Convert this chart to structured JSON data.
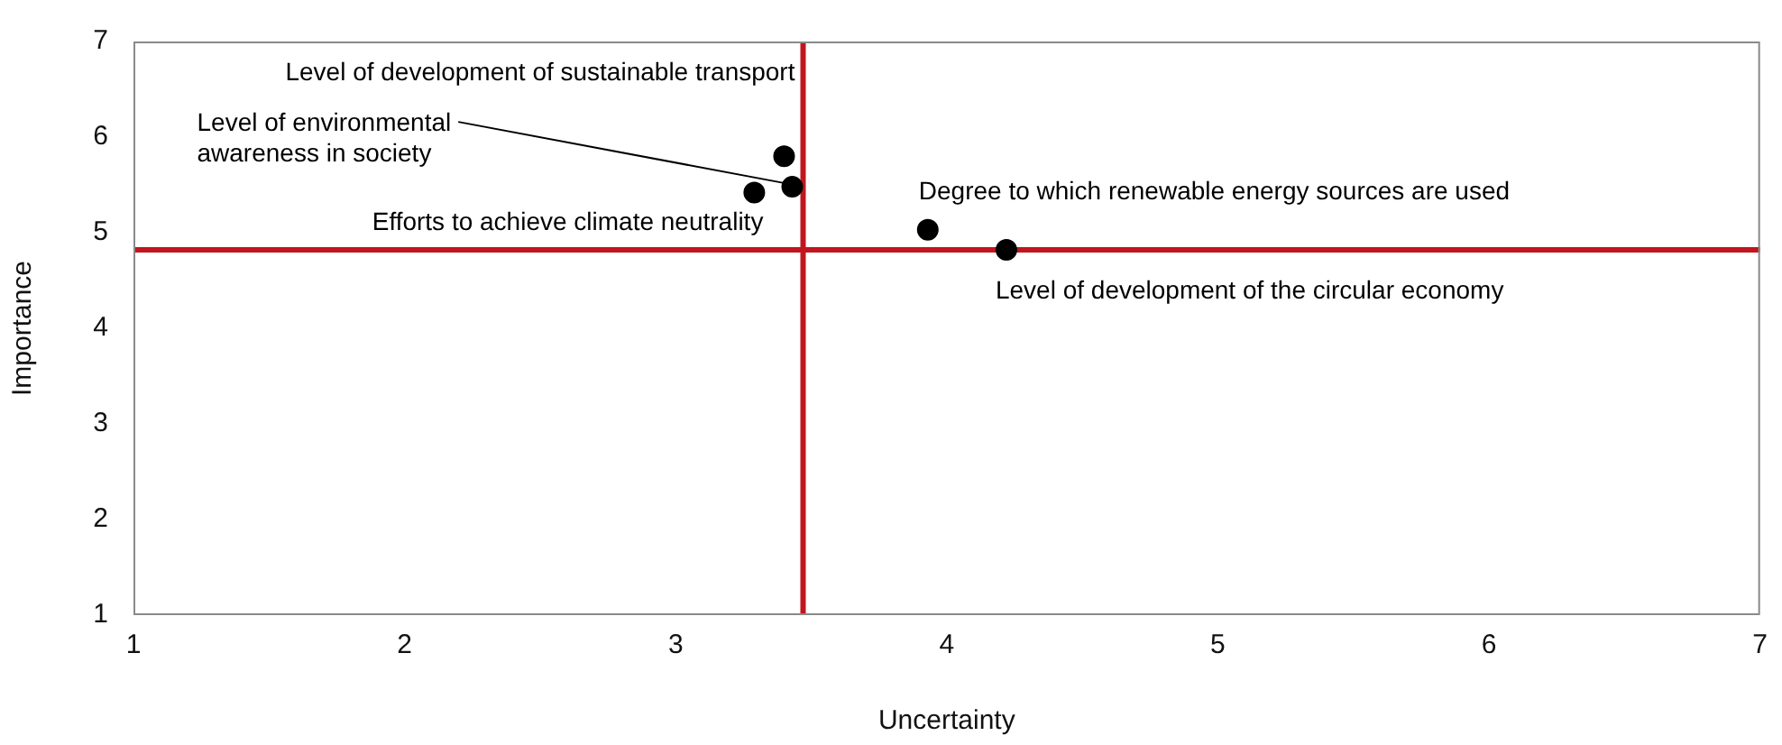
{
  "chart_data": {
    "type": "scatter",
    "xlabel": "Uncertainty",
    "ylabel": "Importance",
    "xlim": [
      1,
      7
    ],
    "xticks": [
      1,
      2,
      3,
      4,
      5,
      6,
      7
    ],
    "ylim": [
      1,
      7
    ],
    "yticks": [
      1,
      2,
      3,
      4,
      5,
      6,
      7
    ],
    "grid": false,
    "legend": false,
    "marker": "circle",
    "series": [
      {
        "color": "#000000",
        "x": [
          3.4,
          3.43,
          3.29,
          3.93,
          4.22
        ],
        "values": [
          5.8,
          5.48,
          5.42,
          5.03,
          4.82
        ]
      }
    ],
    "ref_lines": [
      {
        "axis": "x",
        "value": 3.47,
        "color": "#c0161e"
      },
      {
        "axis": "y",
        "value": 4.82,
        "color": "#c0161e"
      }
    ],
    "annotations": [
      {
        "text": "Level of development of sustainable transport",
        "x": 3.4,
        "y": 5.8
      },
      {
        "text": "Level of environmental\nawareness in society",
        "x": 3.43,
        "y": 5.48
      },
      {
        "text": "Efforts to achieve climate neutrality",
        "x": 3.29,
        "y": 5.42
      },
      {
        "text": "Degree to which renewable energy sources are used",
        "x": 3.93,
        "y": 5.03
      },
      {
        "text": "Level of development of the circular economy",
        "x": 4.22,
        "y": 4.82
      }
    ]
  }
}
